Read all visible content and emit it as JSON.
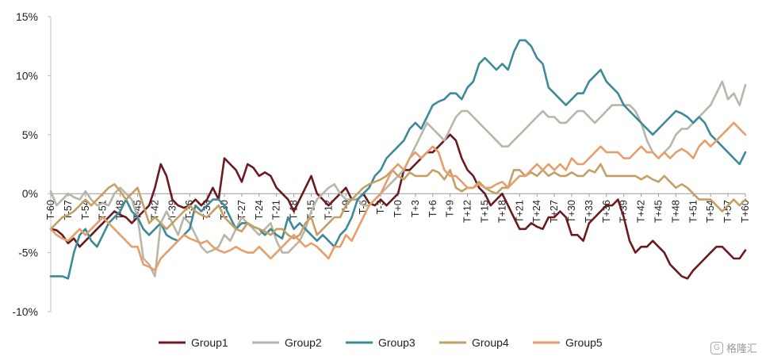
{
  "chart_data": {
    "type": "line",
    "title": "",
    "xlabel": "",
    "ylabel": "",
    "ylim": [
      -10,
      15
    ],
    "yticks": [
      -10,
      -5,
      0,
      5,
      10,
      15
    ],
    "ytick_labels": [
      "-10%",
      "-5%",
      "0%",
      "5%",
      "10%",
      "15%"
    ],
    "x_start": -60,
    "x_end": 60,
    "xtick_labels": [
      "T-60",
      "T-57",
      "T-54",
      "T-51",
      "T-48",
      "T-45",
      "T-42",
      "T-39",
      "T-36",
      "T-33",
      "T-30",
      "T-27",
      "T-24",
      "T-21",
      "T-18",
      "T-15",
      "T-12",
      "T-9",
      "T-6",
      "T-3",
      "T+0",
      "T+3",
      "T+6",
      "T+9",
      "T+12",
      "T+15",
      "T+18",
      "T+21",
      "T+24",
      "T+27",
      "T+30",
      "T+33",
      "T+36",
      "T+39",
      "T+42",
      "T+45",
      "T+48",
      "T+51",
      "T+54",
      "T+57",
      "T+60"
    ],
    "grid": false,
    "legend": "bottom",
    "series": [
      {
        "name": "Group1",
        "color": "#6b1a1f",
        "values": [
          -3.0,
          -3.1,
          -3.5,
          -4.2,
          -3.8,
          -4.5,
          -4.0,
          -3.5,
          -3.0,
          -2.5,
          -2.0,
          -1.5,
          -1.8,
          -2.0,
          -2.5,
          -2.0,
          -1.5,
          -1.0,
          0.5,
          2.5,
          1.5,
          -0.5,
          -1.0,
          -1.2,
          -1.0,
          -0.5,
          -1.0,
          -0.5,
          0.5,
          -0.5,
          3.0,
          2.5,
          2.0,
          1.0,
          2.5,
          2.2,
          1.5,
          1.8,
          1.5,
          0.5,
          0.0,
          -0.5,
          -1.5,
          -0.5,
          0.5,
          1.5,
          0.0,
          -0.5,
          -1.0,
          -0.5,
          0.0,
          0.5,
          -0.5,
          -0.5,
          0.0,
          -0.8,
          -1.0,
          -0.5,
          -1.0,
          -0.5,
          0.0,
          2.0,
          2.0,
          2.5,
          3.0,
          3.5,
          3.5,
          4.0,
          4.5,
          5.0,
          4.5,
          3.0,
          2.0,
          1.5,
          0.5,
          0.0,
          -1.0,
          -0.5,
          0.0,
          -1.0,
          -2.0,
          -3.0,
          -3.0,
          -2.5,
          -2.8,
          -3.0,
          -2.0,
          -2.0,
          -1.5,
          -2.0,
          -3.5,
          -3.5,
          -4.0,
          -2.5,
          -2.0,
          -1.5,
          -1.0,
          -1.0,
          -0.5,
          -2.0,
          -4.0,
          -5.0,
          -4.5,
          -4.5,
          -4.0,
          -4.5,
          -5.0,
          -6.0,
          -6.5,
          -7.0,
          -7.2,
          -6.5,
          -6.0,
          -5.5,
          -5.0,
          -4.5,
          -4.5,
          -5.0,
          -5.5,
          -5.5,
          -4.8
        ]
      },
      {
        "name": "Group2",
        "color": "#b7b6a7",
        "values": [
          0.2,
          -1.0,
          -0.5,
          0.0,
          -0.3,
          -0.5,
          0.2,
          -0.5,
          -1.0,
          -0.8,
          -1.0,
          0.0,
          0.5,
          0.0,
          -0.5,
          -2.0,
          -5.5,
          -6.0,
          -7.0,
          -2.5,
          -1.5,
          -2.5,
          -3.5,
          -2.0,
          -2.5,
          -3.5,
          -4.5,
          -5.0,
          -4.8,
          -4.5,
          -3.5,
          -4.0,
          -3.0,
          -2.0,
          -2.5,
          -3.0,
          -3.5,
          -3.0,
          -2.5,
          -4.0,
          -5.0,
          -5.0,
          -4.5,
          -4.0,
          -3.0,
          -1.5,
          -0.5,
          0.0,
          0.5,
          0.8,
          0.0,
          -0.5,
          -0.5,
          -0.5,
          -1.0,
          -1.0,
          -0.5,
          0.0,
          0.5,
          1.0,
          1.5,
          2.0,
          3.0,
          4.0,
          5.0,
          6.0,
          5.5,
          5.0,
          4.5,
          5.5,
          6.5,
          7.0,
          7.0,
          6.5,
          6.0,
          5.5,
          5.0,
          4.5,
          4.0,
          4.0,
          4.5,
          5.0,
          5.5,
          6.0,
          6.5,
          7.0,
          6.5,
          6.5,
          6.0,
          6.0,
          6.5,
          7.0,
          7.0,
          6.5,
          6.0,
          6.5,
          7.0,
          7.5,
          7.5,
          7.5,
          7.5,
          7.0,
          6.0,
          4.5,
          3.5,
          3.0,
          3.5,
          4.0,
          5.0,
          5.5,
          5.5,
          6.0,
          6.5,
          7.0,
          7.5,
          8.5,
          9.5,
          8.0,
          8.5,
          7.5,
          9.2
        ]
      },
      {
        "name": "Group3",
        "color": "#3d8a99",
        "values": [
          -7.0,
          -7.0,
          -7.0,
          -7.2,
          -5.0,
          -3.5,
          -3.0,
          -4.0,
          -4.5,
          -3.5,
          -2.5,
          -2.0,
          -1.5,
          -0.5,
          -1.5,
          -2.0,
          -3.0,
          -3.5,
          -3.0,
          -2.5,
          -3.5,
          -3.8,
          -4.0,
          -3.5,
          -3.0,
          -1.0,
          -1.5,
          -1.0,
          -0.5,
          -0.5,
          -1.0,
          -2.0,
          -3.0,
          -2.5,
          -2.5,
          -2.8,
          -3.0,
          -3.5,
          -3.0,
          -3.5,
          -3.8,
          -2.0,
          -3.0,
          -2.5,
          -3.0,
          -3.5,
          -4.0,
          -3.5,
          -4.0,
          -4.5,
          -3.5,
          -3.0,
          -2.0,
          -0.5,
          0.0,
          0.5,
          1.5,
          2.0,
          3.0,
          3.5,
          4.0,
          4.5,
          5.5,
          6.0,
          5.5,
          6.5,
          7.5,
          7.8,
          8.0,
          8.5,
          8.5,
          8.0,
          9.0,
          9.5,
          11.0,
          11.5,
          11.0,
          10.5,
          11.0,
          10.5,
          12.0,
          13.0,
          13.0,
          12.5,
          11.5,
          11.0,
          9.0,
          8.5,
          8.0,
          7.5,
          8.0,
          8.5,
          8.5,
          9.5,
          10.0,
          10.5,
          9.5,
          9.0,
          8.5,
          7.5,
          7.0,
          6.5,
          6.0,
          5.5,
          5.0,
          5.5,
          6.0,
          6.5,
          7.0,
          6.8,
          6.5,
          6.0,
          6.5,
          6.0,
          5.0,
          4.5,
          4.0,
          3.5,
          3.0,
          2.5,
          3.5
        ]
      },
      {
        "name": "Group4",
        "color": "#c4a064",
        "values": [
          -3.0,
          -2.5,
          -2.0,
          -1.8,
          -1.5,
          -1.0,
          -0.5,
          -1.0,
          -0.5,
          0.0,
          0.5,
          0.8,
          0.2,
          -0.5,
          0.0,
          0.5,
          -1.0,
          -2.5,
          -2.0,
          -2.5,
          -3.0,
          -2.5,
          -2.0,
          -1.5,
          -1.0,
          -1.5,
          -1.8,
          -2.0,
          -1.5,
          -1.0,
          -2.0,
          -2.5,
          -3.0,
          -3.2,
          -2.5,
          -2.8,
          -3.0,
          -3.2,
          -3.5,
          -3.0,
          -3.0,
          -3.5,
          -3.8,
          -3.5,
          -2.5,
          -2.0,
          -3.5,
          -3.0,
          -2.5,
          -2.0,
          -2.0,
          -1.0,
          -0.5,
          0.0,
          0.5,
          0.8,
          1.0,
          1.2,
          1.5,
          2.0,
          1.5,
          1.2,
          1.8,
          1.5,
          1.5,
          1.5,
          2.0,
          1.8,
          1.2,
          2.0,
          0.5,
          0.2,
          0.5,
          0.5,
          1.0,
          0.5,
          0.2,
          0.0,
          0.5,
          0.5,
          2.0,
          2.0,
          1.5,
          1.8,
          1.5,
          2.0,
          1.5,
          1.8,
          1.5,
          1.5,
          1.8,
          1.5,
          1.5,
          2.0,
          1.8,
          2.5,
          1.5,
          1.5,
          1.5,
          1.5,
          1.5,
          1.5,
          1.2,
          1.5,
          1.2,
          1.0,
          1.5,
          1.0,
          0.5,
          0.8,
          0.5,
          0.0,
          -0.5,
          -0.5,
          -0.5,
          -1.0,
          -1.5,
          -1.0,
          -0.5,
          -1.0,
          -0.5
        ]
      },
      {
        "name": "Group5",
        "color": "#e89e6a",
        "values": [
          -3.0,
          -3.5,
          -3.8,
          -4.0,
          -3.5,
          -3.0,
          -3.5,
          -3.0,
          -2.5,
          -2.0,
          -2.5,
          -3.0,
          -3.5,
          -4.0,
          -4.5,
          -4.5,
          -6.0,
          -6.2,
          -6.5,
          -5.5,
          -5.0,
          -4.5,
          -4.0,
          -3.5,
          -3.8,
          -4.0,
          -4.2,
          -4.0,
          -4.5,
          -4.8,
          -5.0,
          -4.8,
          -4.5,
          -4.8,
          -5.0,
          -5.0,
          -4.5,
          -5.0,
          -5.5,
          -5.0,
          -4.5,
          -4.0,
          -3.5,
          -4.0,
          -4.5,
          -4.2,
          -4.5,
          -5.0,
          -5.5,
          -4.5,
          -4.5,
          -3.5,
          -4.0,
          -3.0,
          -2.0,
          -1.0,
          -0.5,
          0.0,
          1.0,
          2.0,
          2.5,
          2.0,
          3.0,
          3.5,
          3.0,
          3.5,
          4.0,
          3.5,
          2.0,
          1.5,
          1.5,
          1.0,
          0.5,
          0.5,
          0.8,
          0.5,
          0.5,
          0.8,
          1.0,
          0.5,
          1.0,
          1.5,
          1.5,
          2.0,
          2.5,
          2.0,
          2.5,
          2.0,
          2.5,
          2.0,
          3.0,
          2.5,
          2.5,
          3.0,
          3.5,
          4.0,
          3.5,
          3.5,
          3.5,
          3.0,
          3.0,
          3.5,
          4.0,
          3.5,
          3.5,
          3.0,
          3.5,
          3.0,
          3.5,
          3.8,
          3.5,
          3.0,
          4.0,
          4.5,
          4.0,
          4.5,
          5.0,
          5.5,
          6.0,
          5.5,
          5.0
        ]
      }
    ]
  },
  "watermark": {
    "icon": "badge-icon",
    "text": "格隆汇"
  }
}
